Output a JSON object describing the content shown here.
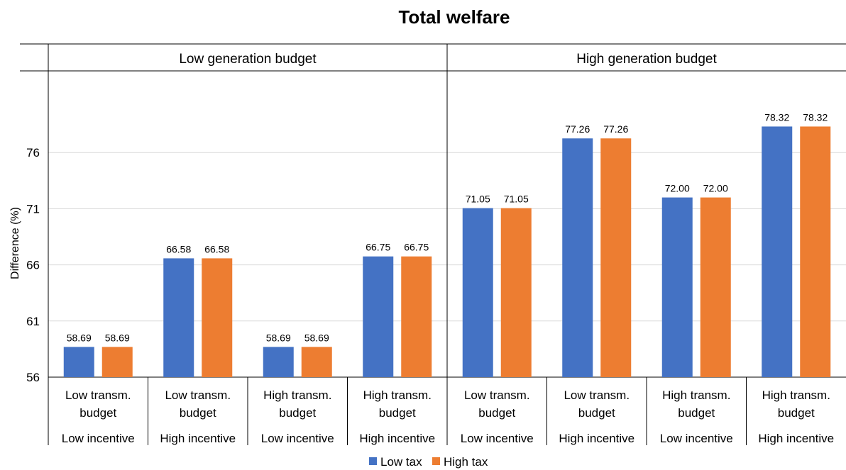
{
  "chart_data": {
    "type": "bar",
    "title": "Total welfare",
    "ylabel": "Difference (%)",
    "ylim": [
      56,
      81
    ],
    "yticks": [
      56,
      61,
      66,
      71,
      76
    ],
    "grid": true,
    "legend_position": "bottom",
    "groups": [
      "Low generation budget",
      "High generation budget"
    ],
    "categories": [
      {
        "line1": "Low transm.",
        "line2": "budget",
        "incentive": "Low incentive"
      },
      {
        "line1": "Low transm.",
        "line2": "budget",
        "incentive": "High incentive"
      },
      {
        "line1": "High transm.",
        "line2": "budget",
        "incentive": "Low incentive"
      },
      {
        "line1": "High transm.",
        "line2": "budget",
        "incentive": "High incentive"
      },
      {
        "line1": "Low transm.",
        "line2": "budget",
        "incentive": "Low incentive"
      },
      {
        "line1": "Low transm.",
        "line2": "budget",
        "incentive": "High incentive"
      },
      {
        "line1": "High transm.",
        "line2": "budget",
        "incentive": "Low incentive"
      },
      {
        "line1": "High transm.",
        "line2": "budget",
        "incentive": "High incentive"
      }
    ],
    "series": [
      {
        "name": "Low tax",
        "color": "#4472C4",
        "values": [
          58.69,
          66.58,
          58.69,
          66.75,
          71.05,
          77.26,
          72.0,
          78.32
        ],
        "labels": [
          "58.69",
          "66.58",
          "58.69",
          "66.75",
          "71.05",
          "77.26",
          "72.00",
          "78.32"
        ]
      },
      {
        "name": "High tax",
        "color": "#ED7D31",
        "values": [
          58.69,
          66.58,
          58.69,
          66.75,
          71.05,
          77.26,
          72.0,
          78.32
        ],
        "labels": [
          "58.69",
          "66.58",
          "58.69",
          "66.75",
          "71.05",
          "77.26",
          "72.00",
          "78.32"
        ]
      }
    ]
  }
}
